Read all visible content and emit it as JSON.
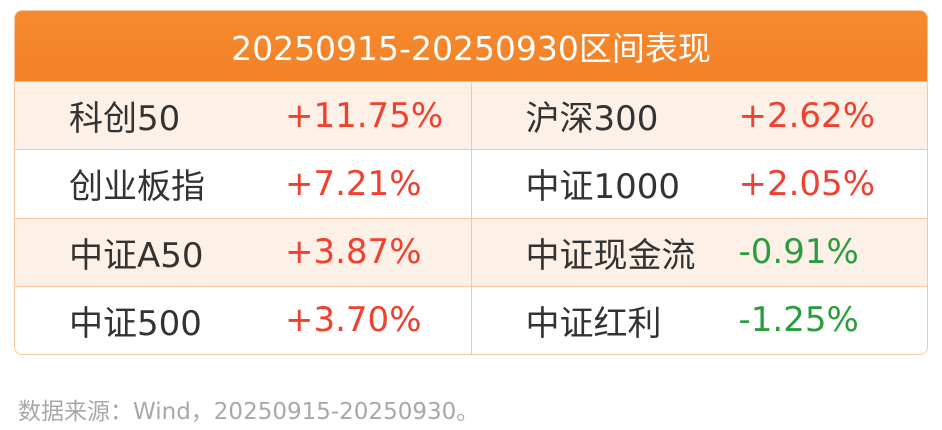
{
  "header": {
    "title": "20250915-20250930区间表现"
  },
  "table": {
    "rows": [
      [
        "科创50",
        "+11.75%",
        "沪深300",
        "+2.62%"
      ],
      [
        "创业板指",
        "+7.21%",
        "中证1000",
        "+2.05%"
      ],
      [
        "中证A50",
        "+3.87%",
        "中证现金流",
        "-0.91%"
      ],
      [
        "中证500",
        "+3.70%",
        "中证红利",
        "-1.25%"
      ]
    ]
  },
  "footer": {
    "source": "数据来源：Wind，20250915-20250930。"
  }
}
